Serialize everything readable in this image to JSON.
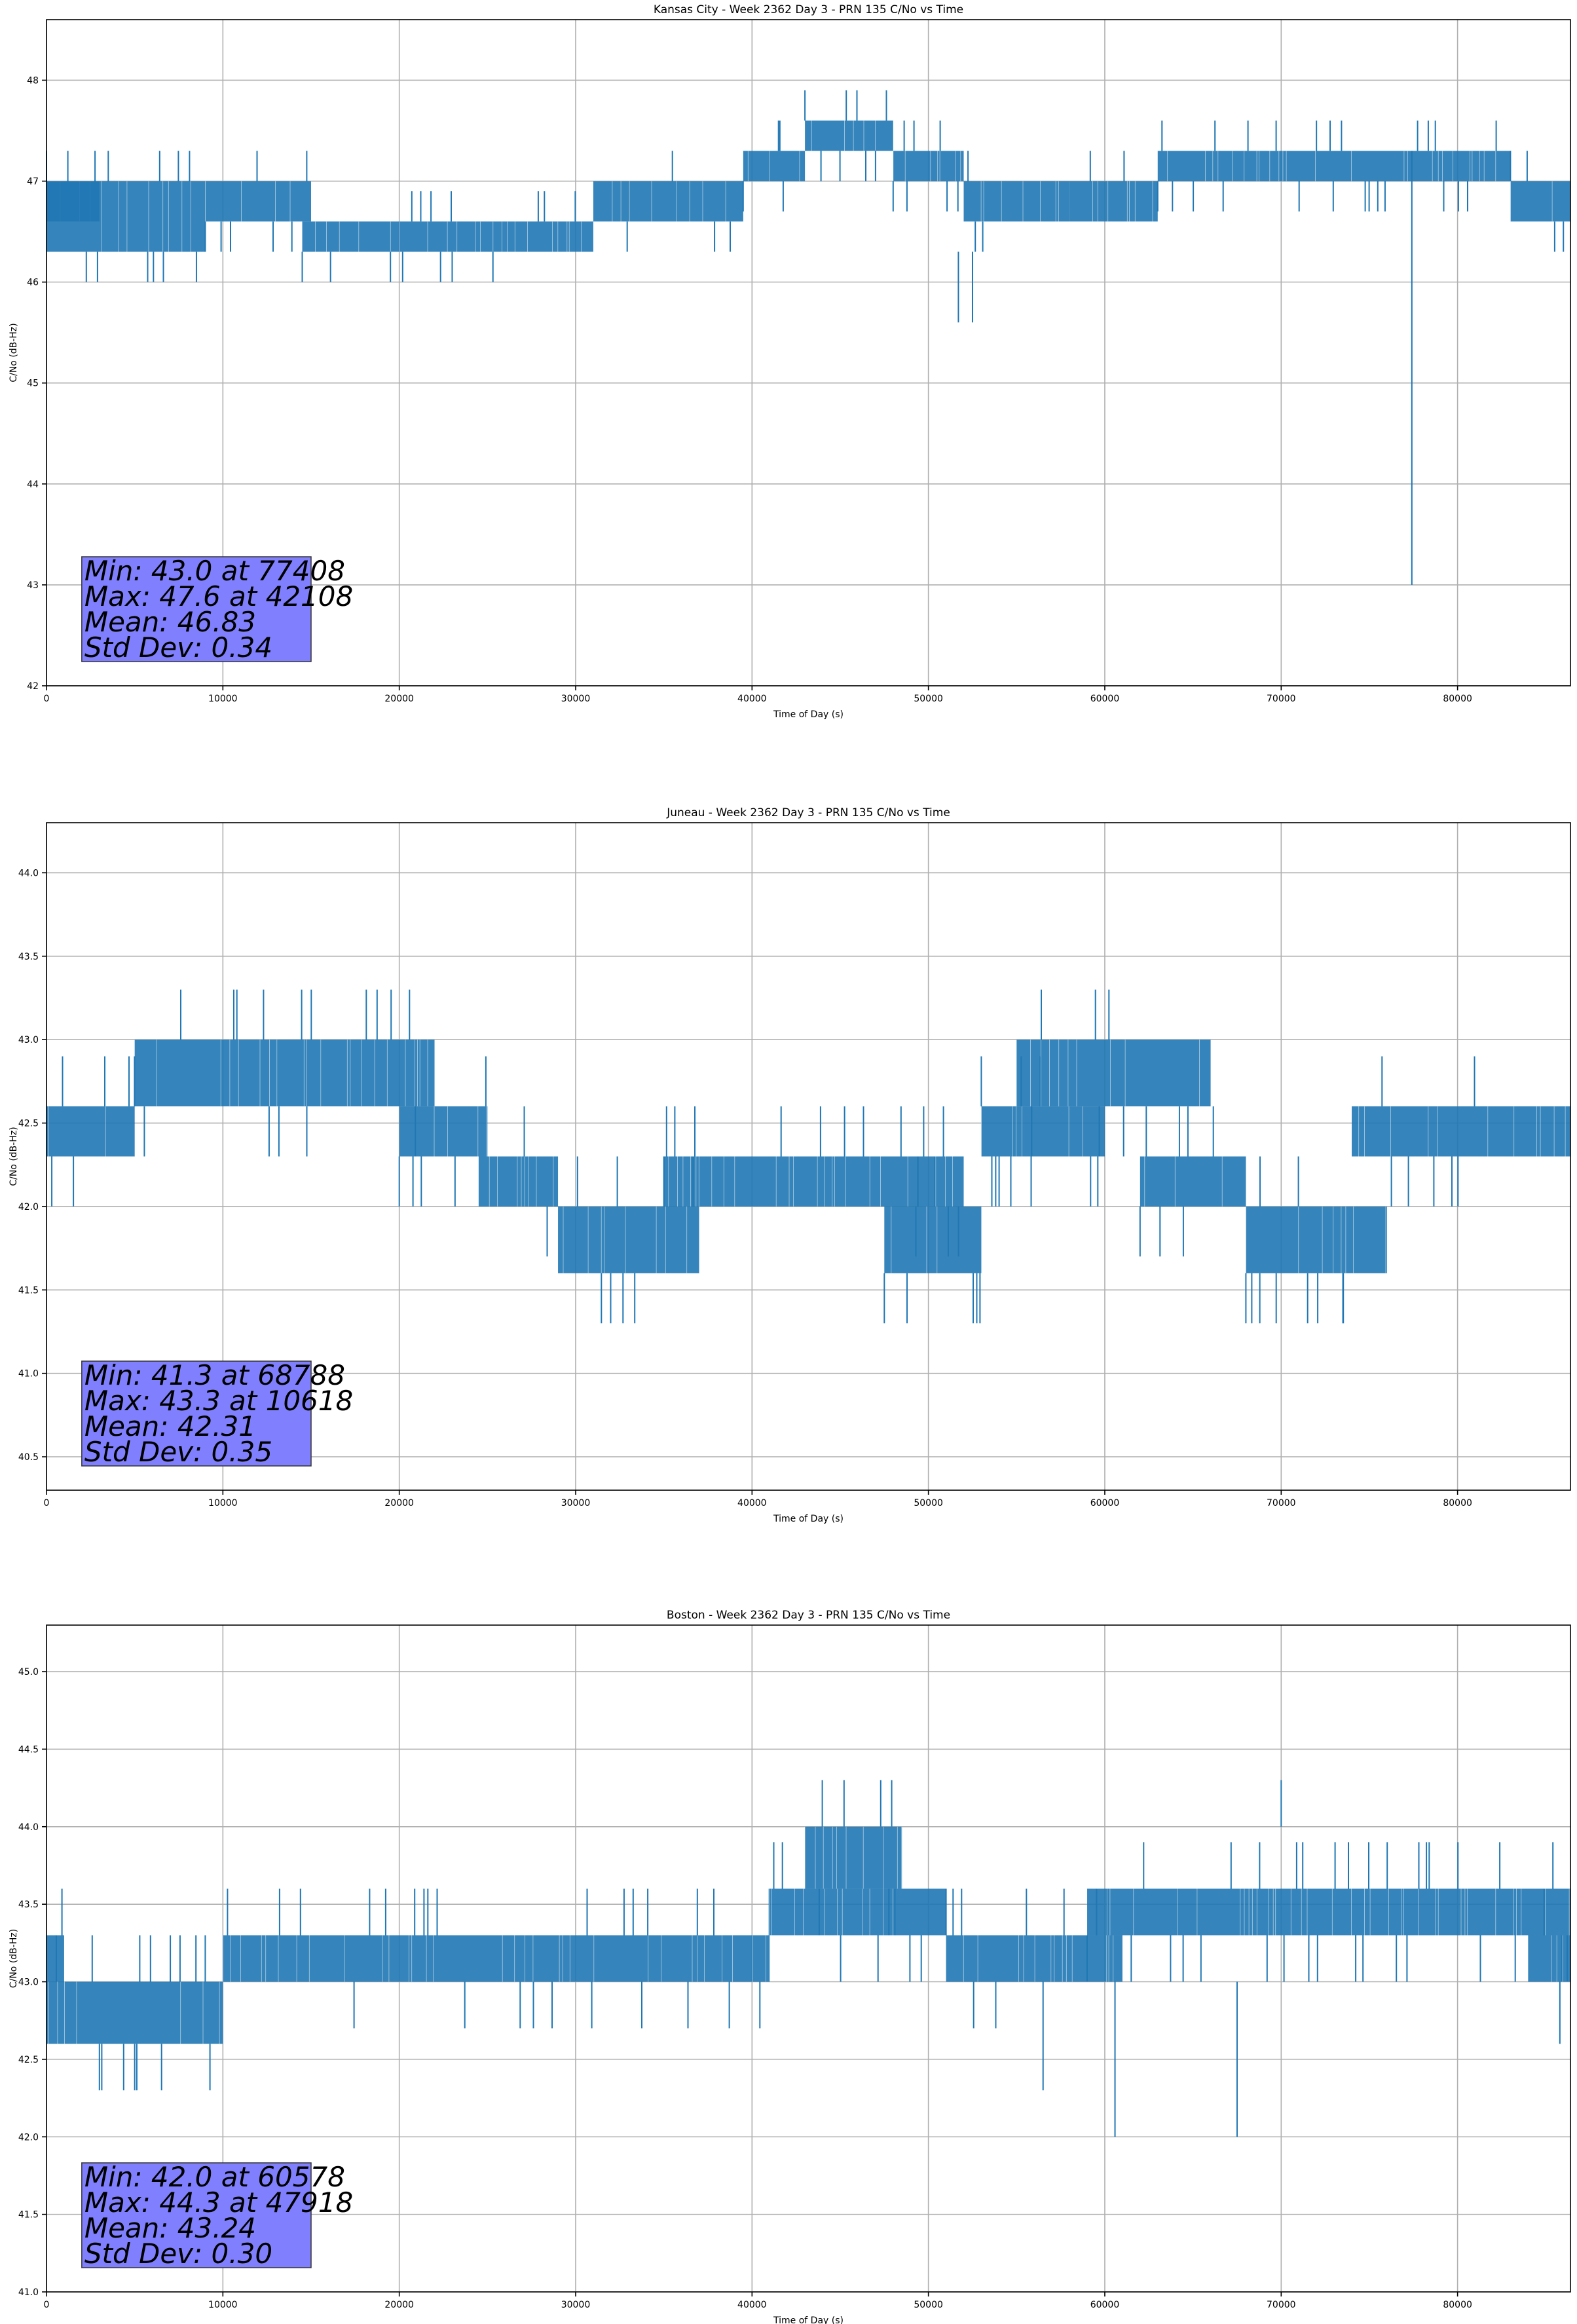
{
  "chart_data": [
    {
      "type": "line",
      "title": "Kansas City - Week 2362 Day 3 - PRN 135 C/No vs Time",
      "xlabel": "Time of Day (s)",
      "ylabel": "C/No (dB-Hz)",
      "xlim": [
        0,
        86400
      ],
      "ylim": [
        42,
        48.6
      ],
      "xticks": [
        0,
        10000,
        20000,
        30000,
        40000,
        50000,
        60000,
        70000,
        80000
      ],
      "xtick_labels": [
        "0",
        "10000",
        "20000",
        "30000",
        "40000",
        "50000",
        "60000",
        "70000",
        "80000"
      ],
      "yticks": [
        42,
        43,
        44,
        45,
        46,
        47,
        48
      ],
      "ytick_labels": [
        "42",
        "43",
        "44",
        "45",
        "46",
        "47",
        "48"
      ],
      "grid": true,
      "color": "#1f77b4",
      "segments": [
        {
          "x": [
            0,
            3000
          ],
          "low": 46.6,
          "high": 47.0
        },
        {
          "x": [
            0,
            9000
          ],
          "low": 46.3,
          "high": 47.0
        },
        {
          "x": [
            9000,
            15000
          ],
          "low": 46.6,
          "high": 47.0
        },
        {
          "x": [
            14500,
            31000
          ],
          "low": 46.3,
          "high": 46.6
        },
        {
          "x": [
            31000,
            39500
          ],
          "low": 46.6,
          "high": 47.0
        },
        {
          "x": [
            39500,
            43000
          ],
          "low": 47.0,
          "high": 47.3
        },
        {
          "x": [
            43000,
            48000
          ],
          "low": 47.3,
          "high": 47.6
        },
        {
          "x": [
            48000,
            52000
          ],
          "low": 47.0,
          "high": 47.3
        },
        {
          "x": [
            52000,
            58000
          ],
          "low": 46.6,
          "high": 47.0
        },
        {
          "x": [
            58000,
            63000
          ],
          "low": 46.6,
          "high": 47.0
        },
        {
          "x": [
            63000,
            83000
          ],
          "low": 47.0,
          "high": 47.3
        },
        {
          "x": [
            83000,
            86400
          ],
          "low": 46.6,
          "high": 47.0
        }
      ],
      "spikes": [
        {
          "x": 8500,
          "low": 46.0,
          "high": 46.3
        },
        {
          "x": 19500,
          "low": 46.0,
          "high": 46.3
        },
        {
          "x": 23000,
          "low": 46.0,
          "high": 46.3
        },
        {
          "x": 51700,
          "low": 45.6,
          "high": 46.3
        },
        {
          "x": 52500,
          "low": 45.6,
          "high": 46.3
        },
        {
          "x": 41500,
          "low": 47.3,
          "high": 47.6
        },
        {
          "x": 72000,
          "low": 47.3,
          "high": 47.6
        },
        {
          "x": 77408,
          "low": 43.0,
          "high": 47.3
        },
        {
          "x": 86000,
          "low": 46.3,
          "high": 46.6
        }
      ],
      "stats": {
        "min": "Min: 43.0 at 77408",
        "max": "Max: 47.6 at 42108",
        "mean": "Mean: 46.83",
        "std": "Std Dev: 0.34"
      }
    },
    {
      "type": "line",
      "title": "Juneau - Week 2362 Day 3 - PRN 135 C/No vs Time",
      "xlabel": "Time of Day (s)",
      "ylabel": "C/No (dB-Hz)",
      "xlim": [
        0,
        86400
      ],
      "ylim": [
        40.3,
        44.3
      ],
      "xticks": [
        0,
        10000,
        20000,
        30000,
        40000,
        50000,
        60000,
        70000,
        80000
      ],
      "xtick_labels": [
        "0",
        "10000",
        "20000",
        "30000",
        "40000",
        "50000",
        "60000",
        "70000",
        "80000"
      ],
      "yticks": [
        40.5,
        41.0,
        41.5,
        42.0,
        42.5,
        43.0,
        43.5,
        44.0
      ],
      "ytick_labels": [
        "40.5",
        "41.0",
        "41.5",
        "42.0",
        "42.5",
        "43.0",
        "43.5",
        "44.0"
      ],
      "grid": true,
      "color": "#1f77b4",
      "segments": [
        {
          "x": [
            0,
            5000
          ],
          "low": 42.3,
          "high": 42.6
        },
        {
          "x": [
            5000,
            22000
          ],
          "low": 42.6,
          "high": 43.0
        },
        {
          "x": [
            20000,
            25000
          ],
          "low": 42.3,
          "high": 42.6
        },
        {
          "x": [
            24500,
            29000
          ],
          "low": 42.0,
          "high": 42.3
        },
        {
          "x": [
            29000,
            37000
          ],
          "low": 41.6,
          "high": 42.0
        },
        {
          "x": [
            35000,
            52000
          ],
          "low": 42.0,
          "high": 42.3
        },
        {
          "x": [
            47500,
            53000
          ],
          "low": 41.6,
          "high": 42.0
        },
        {
          "x": [
            53000,
            60000
          ],
          "low": 42.3,
          "high": 42.6
        },
        {
          "x": [
            55000,
            66000
          ],
          "low": 42.6,
          "high": 43.0
        },
        {
          "x": [
            62000,
            68000
          ],
          "low": 42.0,
          "high": 42.3
        },
        {
          "x": [
            68000,
            76000
          ],
          "low": 41.6,
          "high": 42.0
        },
        {
          "x": [
            74000,
            86400
          ],
          "low": 42.3,
          "high": 42.6
        }
      ],
      "spikes": [
        {
          "x": 10618,
          "low": 43.0,
          "high": 43.3
        },
        {
          "x": 68788,
          "low": 41.3,
          "high": 41.6
        },
        {
          "x": 71500,
          "low": 41.3,
          "high": 41.6
        },
        {
          "x": 73500,
          "low": 41.3,
          "high": 41.6
        },
        {
          "x": 300,
          "low": 42.0,
          "high": 42.3
        }
      ],
      "stats": {
        "min": "Min: 41.3 at 68788",
        "max": "Max: 43.3 at 10618",
        "mean": "Mean: 42.31",
        "std": "Std Dev: 0.35"
      }
    },
    {
      "type": "line",
      "title": "Boston - Week 2362 Day 3 - PRN 135 C/No vs Time",
      "xlabel": "Time of Day (s)",
      "ylabel": "C/No (dB-Hz)",
      "xlim": [
        0,
        86400
      ],
      "ylim": [
        41.0,
        45.3
      ],
      "xticks": [
        0,
        10000,
        20000,
        30000,
        40000,
        50000,
        60000,
        70000,
        80000
      ],
      "xtick_labels": [
        "0",
        "10000",
        "20000",
        "30000",
        "40000",
        "50000",
        "60000",
        "70000",
        "80000"
      ],
      "yticks": [
        41.0,
        41.5,
        42.0,
        42.5,
        43.0,
        43.5,
        44.0,
        44.5,
        45.0
      ],
      "ytick_labels": [
        "41.0",
        "41.5",
        "42.0",
        "42.5",
        "43.0",
        "43.5",
        "44.0",
        "44.5",
        "45.0"
      ],
      "grid": true,
      "color": "#1f77b4",
      "segments": [
        {
          "x": [
            0,
            1000
          ],
          "low": 43.0,
          "high": 43.3
        },
        {
          "x": [
            0,
            10000
          ],
          "low": 42.6,
          "high": 43.0
        },
        {
          "x": [
            10000,
            41000
          ],
          "low": 43.0,
          "high": 43.3
        },
        {
          "x": [
            41000,
            51000
          ],
          "low": 43.3,
          "high": 43.6
        },
        {
          "x": [
            43000,
            48500
          ],
          "low": 43.6,
          "high": 44.0
        },
        {
          "x": [
            51000,
            61000
          ],
          "low": 43.0,
          "high": 43.3
        },
        {
          "x": [
            59000,
            86400
          ],
          "low": 43.3,
          "high": 43.6
        },
        {
          "x": [
            84000,
            86400
          ],
          "low": 43.0,
          "high": 43.3
        }
      ],
      "spikes": [
        {
          "x": 3000,
          "low": 42.3,
          "high": 42.6
        },
        {
          "x": 5000,
          "low": 42.3,
          "high": 42.6
        },
        {
          "x": 47918,
          "low": 44.0,
          "high": 44.3
        },
        {
          "x": 56500,
          "low": 42.3,
          "high": 43.0
        },
        {
          "x": 60578,
          "low": 42.0,
          "high": 43.0
        },
        {
          "x": 67500,
          "low": 42.0,
          "high": 43.0
        },
        {
          "x": 70000,
          "low": 44.0,
          "high": 44.3
        },
        {
          "x": 85800,
          "low": 42.6,
          "high": 43.0
        }
      ],
      "stats": {
        "min": "Min: 42.0 at 60578",
        "max": "Max: 44.3 at 47918",
        "mean": "Mean: 43.24",
        "std": "Std Dev: 0.30"
      }
    }
  ]
}
